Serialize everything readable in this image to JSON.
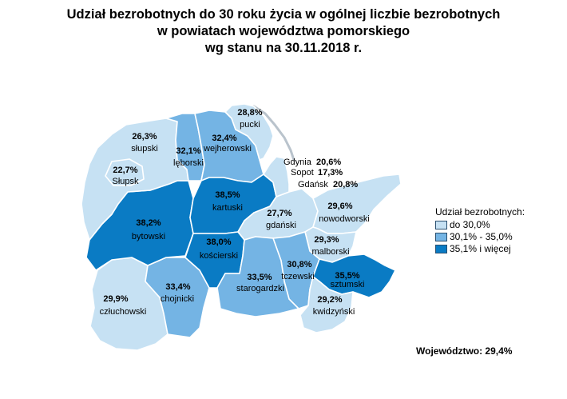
{
  "title": {
    "line1": "Udział bezrobotnych do 30 roku życia w ogólnej liczbie bezrobotnych",
    "line2": "w powiatach województwa pomorskiego",
    "line3": "wg stanu na 30.11.2018 r."
  },
  "colors": {
    "low": "#c6e1f3",
    "mid": "#74b4e4",
    "high": "#0a7bc4",
    "sea": "#ffffff",
    "border": "#ffffff"
  },
  "districts": [
    {
      "name": "pucki",
      "value": "28,8%",
      "class": "low"
    },
    {
      "name": "wejherowski",
      "value": "32,4%",
      "class": "mid"
    },
    {
      "name": "lęborski",
      "value": "32,1%",
      "class": "mid"
    },
    {
      "name": "słupski",
      "value": "26,3%",
      "class": "low"
    },
    {
      "name": "Słupsk",
      "value": "22,7%",
      "class": "low"
    },
    {
      "name": "bytowski",
      "value": "38,2%",
      "class": "high"
    },
    {
      "name": "kartuski",
      "value": "38,5%",
      "class": "high"
    },
    {
      "name": "kościerski",
      "value": "38,0%",
      "class": "high"
    },
    {
      "name": "gdański",
      "value": "27,7%",
      "class": "low"
    },
    {
      "name": "nowodworski",
      "value": "29,6%",
      "class": "low"
    },
    {
      "name": "malborski",
      "value": "29,3%",
      "class": "low"
    },
    {
      "name": "tczewski",
      "value": "30,8%",
      "class": "mid"
    },
    {
      "name": "starogardzki",
      "value": "33,5%",
      "class": "mid"
    },
    {
      "name": "chojnicki",
      "value": "33,4%",
      "class": "mid"
    },
    {
      "name": "człuchowski",
      "value": "29,9%",
      "class": "low"
    },
    {
      "name": "sztumski",
      "value": "35,5%",
      "class": "high"
    },
    {
      "name": "kwidzyński",
      "value": "29,2%",
      "class": "low"
    }
  ],
  "cities": [
    {
      "name": "Gdynia",
      "value": "20,6%"
    },
    {
      "name": "Sopot",
      "value": "17,3%"
    },
    {
      "name": "Gdańsk",
      "value": "20,8%"
    }
  ],
  "legend": {
    "title": "Udział bezrobotnych:",
    "items": [
      {
        "label": "do 30,0%",
        "class": "low"
      },
      {
        "label": "30,1% - 35,0%",
        "class": "mid"
      },
      {
        "label": "35,1% i więcej",
        "class": "high"
      }
    ]
  },
  "footer": "Województwo: 29,4%"
}
